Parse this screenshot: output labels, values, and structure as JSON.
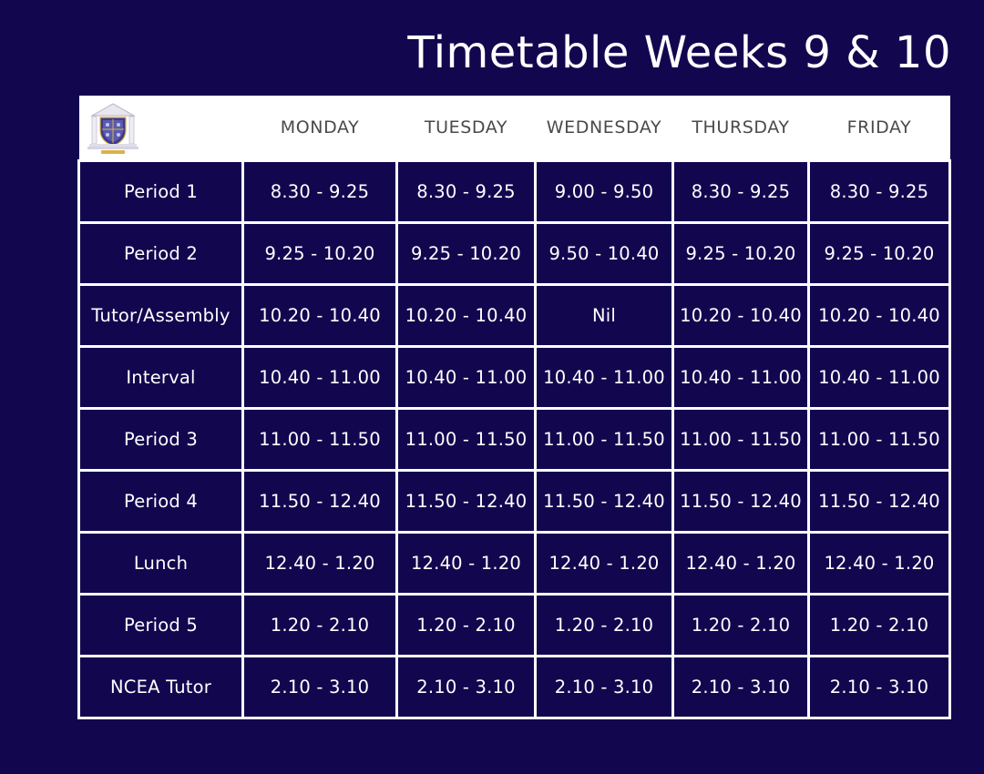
{
  "title": "Timetable Weeks 9 & 10",
  "logo": {
    "icon": "school-crest-icon"
  },
  "days": [
    "MONDAY",
    "TUESDAY",
    "WEDNESDAY",
    "THURSDAY",
    "FRIDAY"
  ],
  "rows": [
    {
      "label": "Period 1",
      "times": [
        "8.30 - 9.25",
        "8.30 - 9.25",
        "9.00 - 9.50",
        "8.30 - 9.25",
        "8.30 - 9.25"
      ]
    },
    {
      "label": "Period 2",
      "times": [
        "9.25 - 10.20",
        "9.25 - 10.20",
        "9.50 - 10.40",
        "9.25 - 10.20",
        "9.25 - 10.20"
      ]
    },
    {
      "label": "Tutor/Assembly",
      "times": [
        "10.20 - 10.40",
        "10.20 - 10.40",
        "Nil",
        "10.20 - 10.40",
        "10.20 - 10.40"
      ]
    },
    {
      "label": "Interval",
      "times": [
        "10.40 - 11.00",
        "10.40 - 11.00",
        "10.40 - 11.00",
        "10.40 - 11.00",
        "10.40 - 11.00"
      ]
    },
    {
      "label": "Period 3",
      "times": [
        "11.00 - 11.50",
        "11.00 - 11.50",
        "11.00 - 11.50",
        "11.00 - 11.50",
        "11.00 - 11.50"
      ]
    },
    {
      "label": "Period 4",
      "times": [
        "11.50 - 12.40",
        "11.50 - 12.40",
        "11.50 - 12.40",
        "11.50 - 12.40",
        "11.50 - 12.40"
      ]
    },
    {
      "label": "Lunch",
      "times": [
        "12.40 - 1.20",
        "12.40 - 1.20",
        "12.40 - 1.20",
        "12.40 - 1.20",
        "12.40 - 1.20"
      ]
    },
    {
      "label": "Period 5",
      "times": [
        "1.20 - 2.10",
        "1.20 - 2.10",
        "1.20 - 2.10",
        "1.20 - 2.10",
        "1.20 - 2.10"
      ]
    },
    {
      "label": "NCEA Tutor",
      "times": [
        "2.10 - 3.10",
        "2.10 - 3.10",
        "2.10 - 3.10",
        "2.10 - 3.10",
        "2.10 - 3.10"
      ]
    }
  ],
  "colors": {
    "background": "#12074f",
    "header_background": "#ffffff",
    "header_text": "#4a4a4a",
    "cell_text": "#ffffff",
    "grid_lines": "#ffffff"
  }
}
